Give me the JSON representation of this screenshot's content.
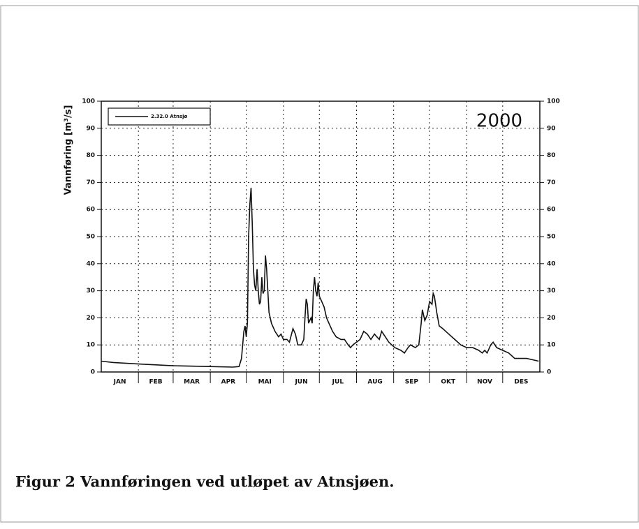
{
  "chart_data": {
    "type": "line",
    "ylabel": "Vannføring [m³/s]",
    "annotation": "2000",
    "caption": "Figur 2 Vannføringen ved utløpet av Atnsjøen.",
    "xlim": [
      0,
      366
    ],
    "xticks": [
      {
        "value": 15.5,
        "label": "JAN"
      },
      {
        "value": 45.5,
        "label": "FEB"
      },
      {
        "value": 75.5,
        "label": "MAR"
      },
      {
        "value": 106,
        "label": "APR"
      },
      {
        "value": 136.5,
        "label": "MAI"
      },
      {
        "value": 167,
        "label": "JUN"
      },
      {
        "value": 197.5,
        "label": "JUL"
      },
      {
        "value": 228.5,
        "label": "AUG"
      },
      {
        "value": 259,
        "label": "SEP"
      },
      {
        "value": 289.5,
        "label": "OKT"
      },
      {
        "value": 320,
        "label": "NOV"
      },
      {
        "value": 350.5,
        "label": "DES"
      }
    ],
    "xgrid": [
      31,
      60,
      91,
      121,
      152,
      182,
      213,
      244,
      274,
      305,
      335
    ],
    "ylim": [
      0,
      100
    ],
    "yticks": [
      0,
      10,
      20,
      30,
      40,
      50,
      60,
      70,
      80,
      90,
      100
    ],
    "grid": true,
    "legend": "upper left",
    "x": [
      0,
      10,
      30,
      60,
      90,
      110,
      115,
      117,
      118,
      119,
      120,
      121,
      122,
      123,
      124,
      125,
      126,
      127,
      128,
      129,
      130,
      131,
      132,
      133,
      134,
      135,
      136,
      137,
      138,
      139,
      140,
      142,
      145,
      148,
      150,
      152,
      155,
      157,
      160,
      162,
      164,
      167,
      169,
      170,
      171,
      172,
      173,
      175,
      176,
      177,
      178,
      179,
      180,
      181,
      182,
      184,
      186,
      188,
      190,
      193,
      196,
      200,
      203,
      206,
      208,
      210,
      213,
      216,
      219,
      222,
      225,
      228,
      230,
      232,
      234,
      237,
      240,
      245,
      250,
      253,
      256,
      258,
      262,
      265,
      267,
      268,
      270,
      272,
      274,
      276,
      277,
      278,
      280,
      282,
      285,
      290,
      295,
      300,
      305,
      310,
      315,
      318,
      320,
      322,
      325,
      327,
      330,
      335,
      340,
      345,
      350,
      355,
      360,
      365
    ],
    "series": [
      {
        "name": "2.32.0 Atnsjø",
        "color": "#111111",
        "values": [
          4,
          3.5,
          3,
          2.3,
          2,
          1.8,
          2,
          5,
          10,
          15,
          17,
          13,
          18,
          50,
          62,
          68,
          55,
          38,
          32,
          30,
          38,
          30,
          25,
          26,
          35,
          29,
          30,
          43,
          38,
          30,
          22,
          18,
          15,
          13,
          14,
          12,
          12,
          11,
          16,
          14,
          10,
          10,
          12,
          20,
          27,
          25,
          18,
          20,
          18,
          30,
          35,
          30,
          28,
          33,
          28,
          26,
          24,
          20,
          18,
          15,
          13,
          12,
          12,
          10,
          9,
          10,
          11,
          12,
          15,
          14,
          12,
          14,
          13,
          12,
          15,
          13,
          11,
          9,
          8,
          7,
          9,
          10,
          9,
          10,
          18,
          23,
          19,
          21,
          26,
          25,
          29,
          28,
          22,
          17,
          16,
          14,
          12,
          10,
          9,
          9,
          8,
          7,
          8,
          7,
          10,
          11,
          9,
          8,
          7,
          5,
          5,
          5,
          4.5,
          4
        ]
      }
    ]
  }
}
